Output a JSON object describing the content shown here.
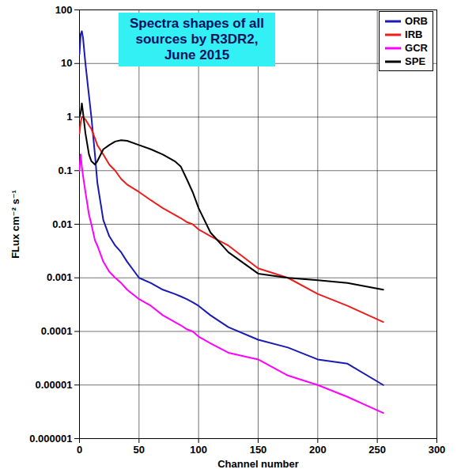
{
  "chart_data": {
    "type": "line",
    "title": "Spectra shapes of all sources by R3DR2, June 2015",
    "x_label": "Channel number",
    "y_label": "FLux cm⁻² s⁻¹",
    "log": "y",
    "grid": true,
    "legend": "top-right",
    "xlim": [
      0,
      300
    ],
    "xticks": [
      0,
      50,
      100,
      150,
      200,
      250,
      300
    ],
    "ylim": [
      1e-06,
      100
    ],
    "yticks": [
      100,
      10,
      1,
      0.1,
      0.01,
      0.001,
      0.0001,
      1e-05,
      1e-06
    ],
    "x": [
      0,
      1,
      2,
      3,
      5,
      8,
      10,
      13,
      15,
      20,
      25,
      30,
      35,
      40,
      50,
      60,
      70,
      80,
      85,
      90,
      95,
      100,
      110,
      125,
      150,
      175,
      200,
      225,
      255
    ],
    "series": [
      {
        "name": "ORB",
        "color": "#1a1ab4",
        "values": [
          15,
          35,
          40,
          30,
          10,
          2.5,
          1,
          0.2,
          0.06,
          0.012,
          0.006,
          0.004,
          0.003,
          0.002,
          0.001,
          0.0008,
          0.0006,
          0.0005,
          0.00045,
          0.0004,
          0.00035,
          0.0003,
          0.0002,
          0.00012,
          7e-05,
          5e-05,
          3e-05,
          2.5e-05,
          1e-05
        ]
      },
      {
        "name": "IRB",
        "color": "#ee1c1c",
        "values": [
          0.5,
          0.8,
          1,
          1,
          0.9,
          0.7,
          0.6,
          0.4,
          0.3,
          0.2,
          0.13,
          0.1,
          0.07,
          0.055,
          0.04,
          0.028,
          0.02,
          0.015,
          0.013,
          0.011,
          0.01,
          0.008,
          0.006,
          0.004,
          0.0015,
          0.001,
          0.0005,
          0.0003,
          0.00015
        ]
      },
      {
        "name": "GCR",
        "color": "#ff00ff",
        "values": [
          0.1,
          0.2,
          0.12,
          0.08,
          0.04,
          0.015,
          0.01,
          0.005,
          0.004,
          0.002,
          0.0013,
          0.001,
          0.0008,
          0.0006,
          0.0004,
          0.0003,
          0.0002,
          0.00015,
          0.00013,
          0.00011,
          0.0001,
          8e-05,
          6e-05,
          4e-05,
          3e-05,
          1.5e-05,
          1e-05,
          6e-06,
          3e-06
        ]
      },
      {
        "name": "SPE",
        "color": "#000000",
        "values": [
          1,
          1.2,
          1.8,
          1.2,
          0.5,
          0.2,
          0.15,
          0.13,
          0.15,
          0.25,
          0.3,
          0.35,
          0.37,
          0.36,
          0.3,
          0.25,
          0.2,
          0.15,
          0.12,
          0.07,
          0.04,
          0.02,
          0.007,
          0.003,
          0.0012,
          0.001,
          0.0009,
          0.0008,
          0.0006
        ]
      }
    ]
  }
}
